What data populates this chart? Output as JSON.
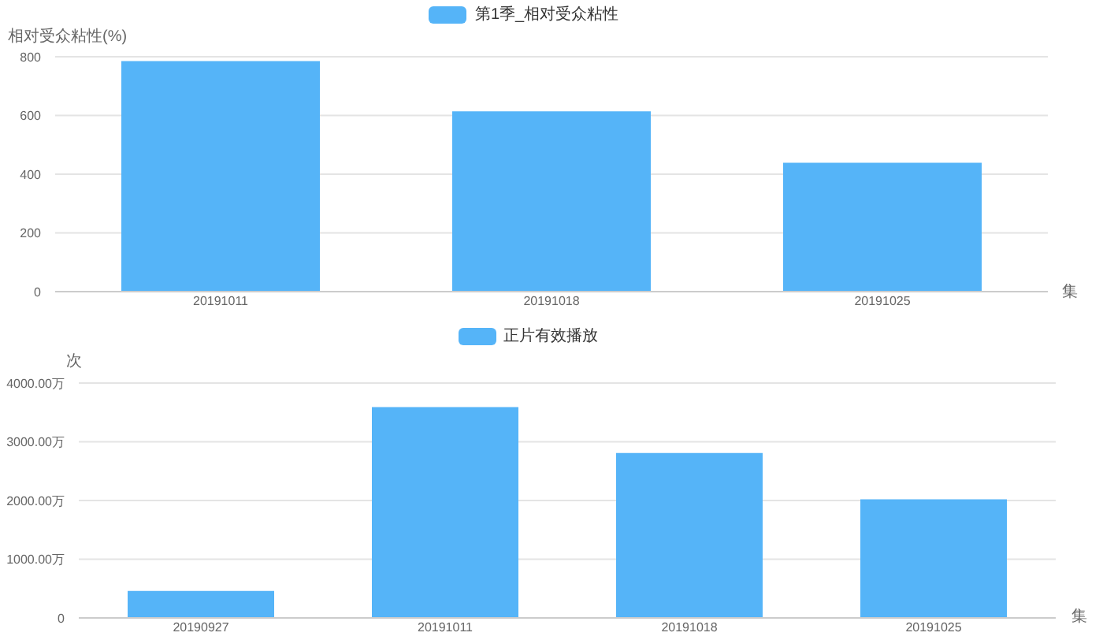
{
  "chart_data": [
    {
      "type": "bar",
      "ylabel": "相对受众粘性(%)",
      "xlabel": "集",
      "categories": [
        "20191011",
        "20191018",
        "20191025"
      ],
      "series": [
        {
          "name": "第1季_相对受众粘性",
          "color": "#55b4f8",
          "values": [
            785,
            614,
            439
          ]
        }
      ],
      "ylim": [
        0,
        800
      ],
      "yticks": [
        0,
        200,
        400,
        600,
        800
      ],
      "grid": "y",
      "legend": "top"
    },
    {
      "type": "bar",
      "ylabel": "次",
      "xlabel": "集",
      "categories": [
        "20190927",
        "20191011",
        "20191018",
        "20191025"
      ],
      "series": [
        {
          "name": "正片有效播放",
          "color": "#55b4f8",
          "values": [
            460,
            3590,
            2810,
            2020
          ]
        }
      ],
      "ylim": [
        0,
        4000
      ],
      "yticks": [
        0,
        {
          "value": 1000,
          "label": "1000.00万"
        },
        {
          "value": 2000,
          "label": "2000.00万"
        },
        {
          "value": 3000,
          "label": "3000.00万"
        },
        {
          "value": 4000,
          "label": "4000.00万"
        }
      ],
      "grid": "y",
      "legend": "top"
    }
  ]
}
